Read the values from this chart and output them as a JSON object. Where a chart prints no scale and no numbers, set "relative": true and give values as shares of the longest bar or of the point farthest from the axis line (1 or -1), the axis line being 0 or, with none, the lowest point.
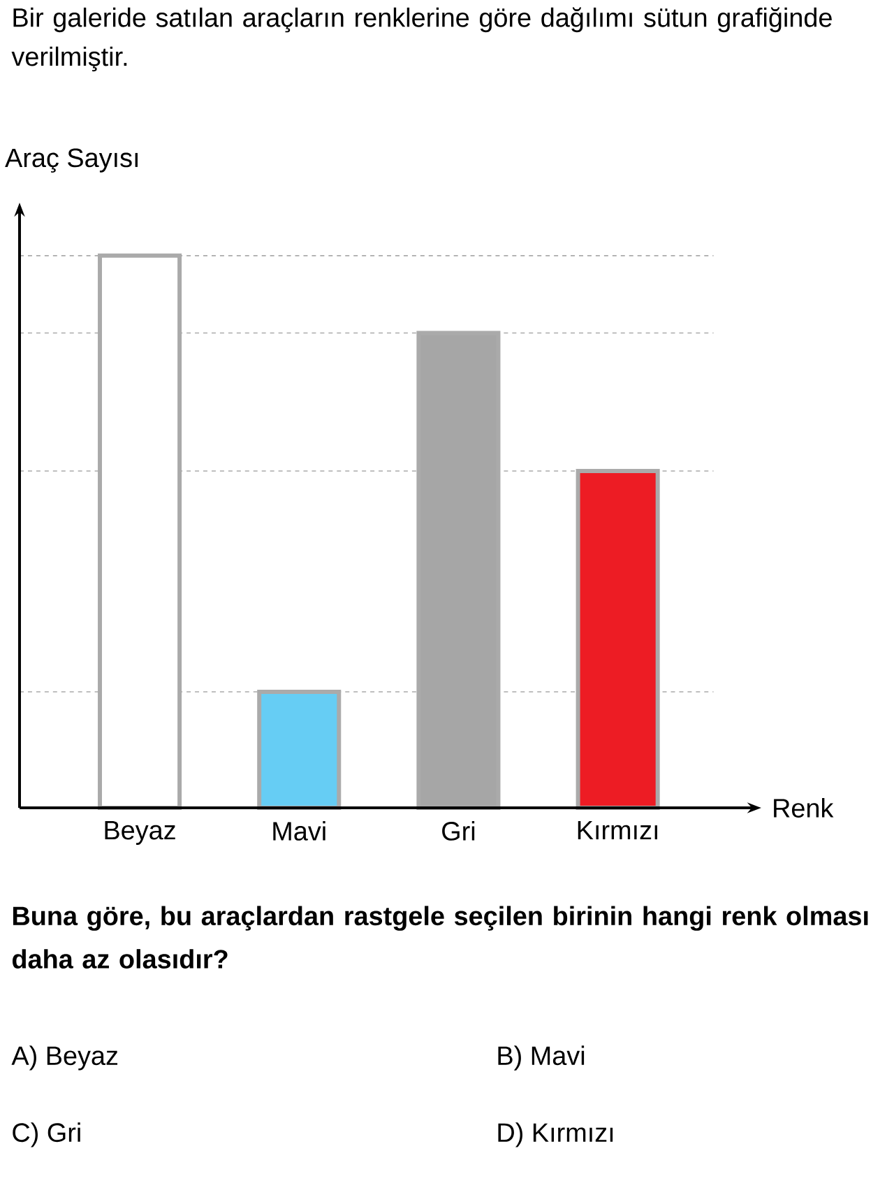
{
  "chart_data": {
    "type": "bar",
    "title": "Bir galeride satılan araçların renklerine göre dağılımı sütun grafiğinde verilmiştir.",
    "ylabel": "Araç Sayısı",
    "xlabel": "Renk",
    "relative": true,
    "categories": [
      "Beyaz",
      "Mavi",
      "Gri",
      "Kırmızı"
    ],
    "values": [
      1,
      0.21,
      0.86,
      0.61
    ],
    "colors": [
      "#ffffff",
      "#66cdf4",
      "#a6a6a6",
      "#ed1c24"
    ],
    "ref_lines": [
      {
        "axis": "y",
        "value": 1,
        "color": "#aaaaaa",
        "line_style": "dashed"
      },
      {
        "axis": "y",
        "value": 0.86,
        "color": "#aaaaaa",
        "line_style": "dashed"
      },
      {
        "axis": "y",
        "value": 0.61,
        "color": "#aaaaaa",
        "line_style": "dashed"
      },
      {
        "axis": "y",
        "value": 0.21,
        "color": "#aaaaaa",
        "line_style": "dashed"
      }
    ],
    "annotations": [
      "Buna göre, bu araçlardan rastgele seçilen birinin hangi renk olması daha az olasıdır?",
      "A) Beyaz",
      "B) Mavi",
      "C) Gri",
      "D) Kırmızı"
    ]
  }
}
